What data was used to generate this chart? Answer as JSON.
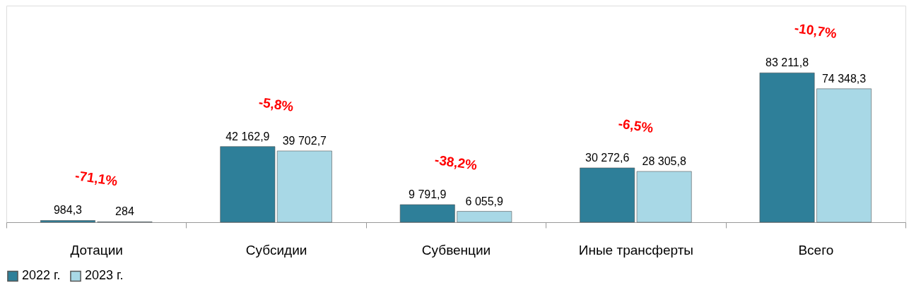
{
  "chart_data": {
    "type": "bar",
    "categories": [
      "Дотации",
      "Субсидии",
      "Субвенции",
      "Иные трансферты",
      "Всего"
    ],
    "series": [
      {
        "name": "2022 г.",
        "color": "#2e7f99",
        "values": [
          984.3,
          42162.9,
          9791.9,
          30272.6,
          83211.8
        ],
        "value_labels": [
          "984,3",
          "42 162,9",
          "9 791,9",
          "30 272,6",
          "83 211,8"
        ]
      },
      {
        "name": "2023 г.",
        "color": "#a8d8e6",
        "values": [
          284,
          39702.7,
          6055.9,
          28305.8,
          74348.3
        ],
        "value_labels": [
          "284",
          "39 702,7",
          "6 055,9",
          "28 305,8",
          "74 348,3"
        ]
      }
    ],
    "annotations": [
      "-71,1%",
      "-5,8%",
      "-38,2%",
      "-6,5%",
      "-10,7%"
    ],
    "legend": "bottom",
    "grid": false
  }
}
